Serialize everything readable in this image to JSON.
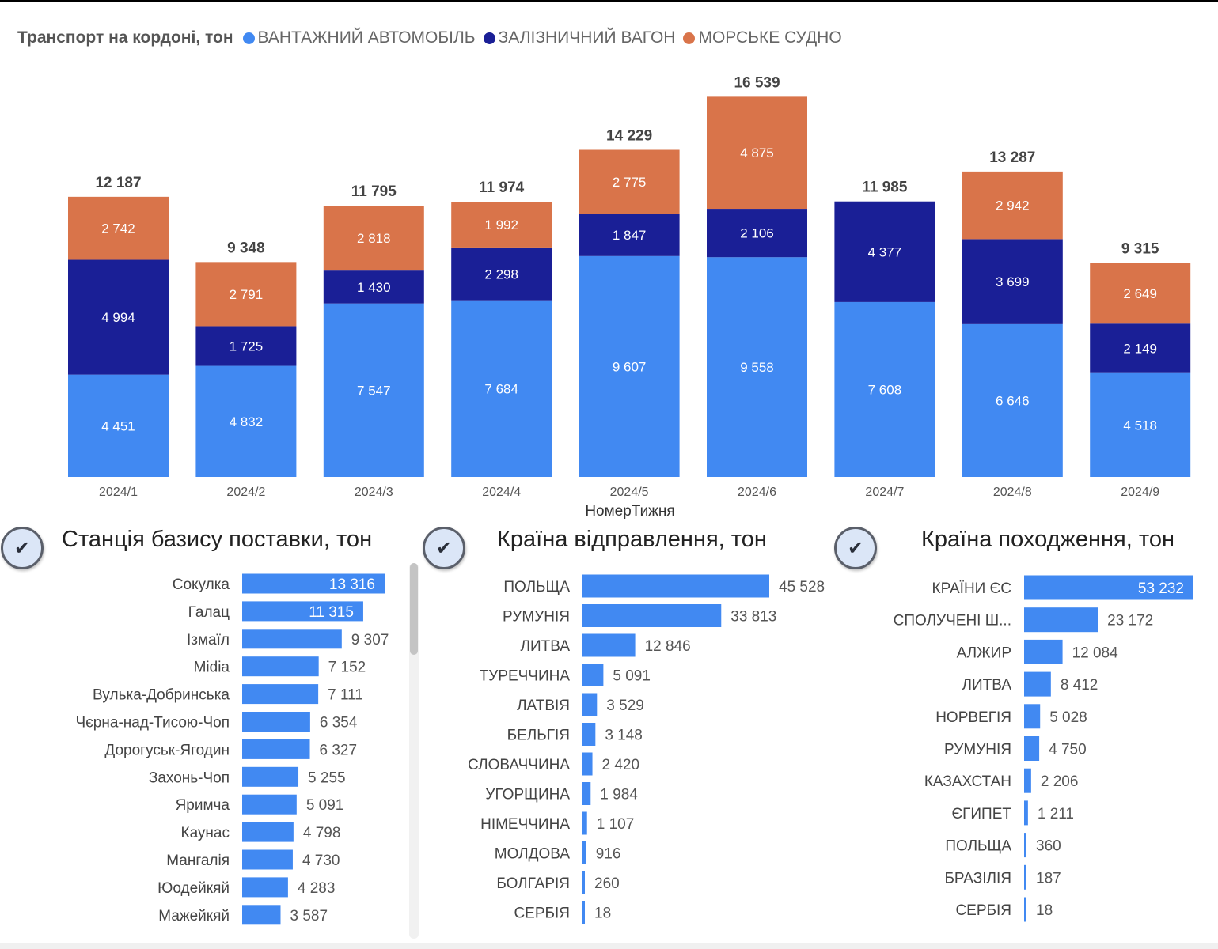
{
  "legend": {
    "title": "Транспорт на кордоні, тон",
    "items": [
      {
        "label": "ВАНТАЖНИЙ АВТОМОБІЛЬ",
        "color": "#4189F2"
      },
      {
        "label": "ЗАЛІЗНИЧНИЙ ВАГОН",
        "color": "#1A1F96"
      },
      {
        "label": "МОРСЬКЕ СУДНО",
        "color": "#D9744A"
      }
    ]
  },
  "chart_data": [
    {
      "type": "bar",
      "stacked": true,
      "title": "Транспорт на кордоні, тон",
      "xlabel": "НомерТижня",
      "categories": [
        "2024/1",
        "2024/2",
        "2024/3",
        "2024/4",
        "2024/5",
        "2024/6",
        "2024/7",
        "2024/8",
        "2024/9"
      ],
      "series": [
        {
          "name": "ВАНТАЖНИЙ АВТОМОБІЛЬ",
          "color": "#4189F2",
          "values": [
            4451,
            4832,
            7547,
            7684,
            9607,
            9558,
            7608,
            6646,
            4518
          ],
          "labels": [
            "4 451",
            "4 832",
            "7 547",
            "7 684",
            "9 607",
            "9 558",
            "7 608",
            "6 646",
            "4 518"
          ]
        },
        {
          "name": "ЗАЛІЗНИЧНИЙ ВАГОН",
          "color": "#1A1F96",
          "values": [
            4994,
            1725,
            1430,
            2298,
            1847,
            2106,
            4377,
            3699,
            2149
          ],
          "labels": [
            "4 994",
            "1 725",
            "1 430",
            "2 298",
            "1 847",
            "2 106",
            "4 377",
            "3 699",
            "2 149"
          ]
        },
        {
          "name": "МОРСЬКЕ СУДНО",
          "color": "#D9744A",
          "values": [
            2742,
            2791,
            2818,
            1992,
            2775,
            4875,
            0,
            2942,
            2649
          ],
          "labels": [
            "2 742",
            "2 791",
            "2 818",
            "1 992",
            "2 775",
            "4 875",
            "",
            "2 942",
            "2 649"
          ]
        }
      ],
      "totals": [
        12187,
        9348,
        11795,
        11974,
        14229,
        16539,
        11985,
        13287,
        9315
      ],
      "total_labels": [
        "12 187",
        "9 348",
        "11 795",
        "11 974",
        "14 229",
        "16 539",
        "11 985",
        "13 287",
        "9 315"
      ]
    },
    {
      "type": "bar",
      "orientation": "horizontal",
      "title": "Станція базису поставки, тон",
      "color": "#4189F2",
      "categories": [
        "Сокулка",
        "Галац",
        "Ізмаїл",
        "Midia",
        "Вулька-Добринська",
        "Чєрна-над-Тисою-Чоп",
        "Дорогуськ-Ягодин",
        "Захонь-Чоп",
        "Яримча",
        "Каунас",
        "Мангалія",
        "Юодейкяй",
        "Мажейкяй"
      ],
      "values": [
        13316,
        11315,
        9307,
        7152,
        7111,
        6354,
        6327,
        5255,
        5091,
        4798,
        4730,
        4283,
        3587
      ],
      "value_labels": [
        "13 316",
        "11 315",
        "9 307",
        "7 152",
        "7 111",
        "6 354",
        "6 327",
        "5 255",
        "5 091",
        "4 798",
        "4 730",
        "4 283",
        "3 587"
      ]
    },
    {
      "type": "bar",
      "orientation": "horizontal",
      "title": "Країна відправлення, тон",
      "color": "#4189F2",
      "categories": [
        "ПОЛЬЩА",
        "РУМУНІЯ",
        "ЛИТВА",
        "ТУРЕЧЧИНА",
        "ЛАТВІЯ",
        "БЕЛЬГІЯ",
        "СЛОВАЧЧИНА",
        "УГОРЩИНА",
        "НІМЕЧЧИНА",
        "МОЛДОВА",
        "БОЛГАРІЯ",
        "СЕРБІЯ"
      ],
      "values": [
        45528,
        33813,
        12846,
        5091,
        3529,
        3148,
        2420,
        1984,
        1107,
        916,
        260,
        18
      ],
      "value_labels": [
        "45 528",
        "33 813",
        "12 846",
        "5 091",
        "3 529",
        "3 148",
        "2 420",
        "1 984",
        "1 107",
        "916",
        "260",
        "18"
      ]
    },
    {
      "type": "bar",
      "orientation": "horizontal",
      "title": "Країна походження, тон",
      "color": "#4189F2",
      "categories": [
        "КРАЇНИ ЄС",
        "СПОЛУЧЕНІ Ш...",
        "АЛЖИР",
        "ЛИТВА",
        "НОРВЕГІЯ",
        "РУМУНІЯ",
        "КАЗАХСТАН",
        "ЄГИПЕТ",
        "ПОЛЬЩА",
        "БРАЗІЛІЯ",
        "СЕРБІЯ"
      ],
      "values": [
        53232,
        23172,
        12084,
        8412,
        5028,
        4750,
        2206,
        1211,
        360,
        187,
        18
      ],
      "value_labels": [
        "53 232",
        "23 172",
        "12 084",
        "8 412",
        "5 028",
        "4 750",
        "2 206",
        "1 211",
        "360",
        "187",
        "18"
      ]
    }
  ],
  "check_icon": "✔"
}
